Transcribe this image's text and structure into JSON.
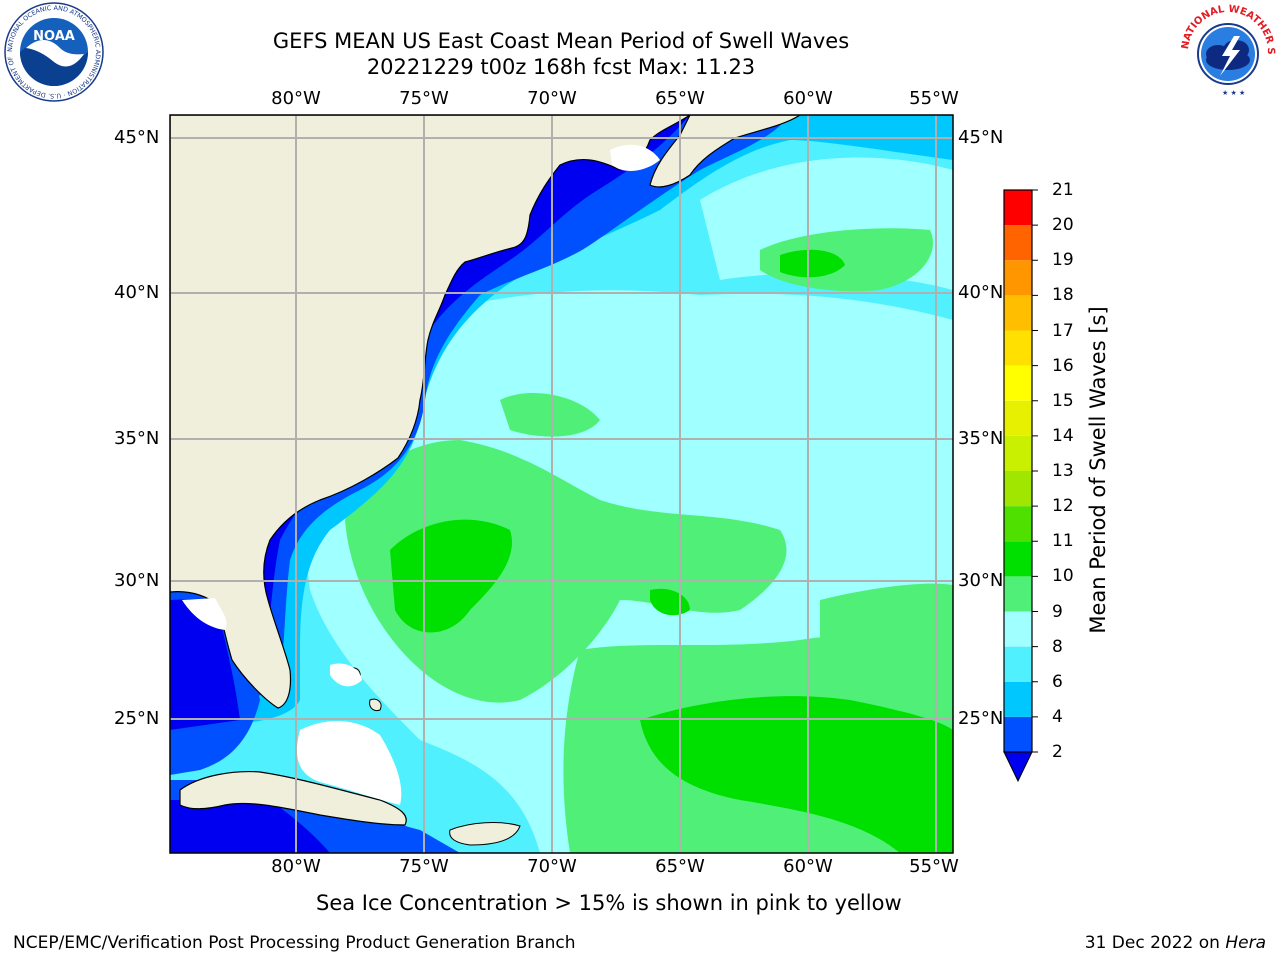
{
  "title": {
    "line1": "GEFS MEAN US East Coast Mean Period of Swell Waves",
    "line2": "20221229 t00z 168h fcst   Max: 11.23"
  },
  "logos": {
    "noaa_text": "NOAA",
    "noaa_ring": "NATIONAL OCEANIC AND ATMOSPHERIC ADMINISTRATION · U.S. DEPARTMENT OF COMMERCE",
    "nws_ring": "NATIONAL WEATHER SERVICE"
  },
  "map": {
    "lon_labels": [
      "80°W",
      "75°W",
      "70°W",
      "65°W",
      "60°W",
      "55°W"
    ],
    "lat_labels": [
      "45°N",
      "40°N",
      "35°N",
      "30°N",
      "25°N"
    ],
    "lon_range": [
      -85,
      -54.25
    ],
    "lat_range": [
      20.5,
      45.8
    ],
    "land_color": "#efefdc",
    "grid_color": "#b0b0b0"
  },
  "colorbar": {
    "label": "Mean Period of Swell Waves [s]",
    "ticks": [
      "2",
      "4",
      "6",
      "8",
      "9",
      "10",
      "11",
      "12",
      "13",
      "14",
      "15",
      "16",
      "17",
      "18",
      "19",
      "20",
      "21"
    ],
    "colors": [
      "#0050ff",
      "#00c8ff",
      "#50f0ff",
      "#a0ffff",
      "#50f078",
      "#00e000",
      "#50e000",
      "#a0e600",
      "#c8f000",
      "#e6f000",
      "#ffff00",
      "#ffe000",
      "#ffbe00",
      "#ff9600",
      "#ff6400",
      "#ff0000"
    ],
    "extend_color": "#0000f0"
  },
  "ice_note": "Sea Ice Concentration > 15% is shown in pink to yellow",
  "footer": {
    "left": "NCEP/EMC/Verification Post Processing Product Generation Branch",
    "right_date": "31 Dec 2022 on ",
    "right_machine": "Hera"
  }
}
